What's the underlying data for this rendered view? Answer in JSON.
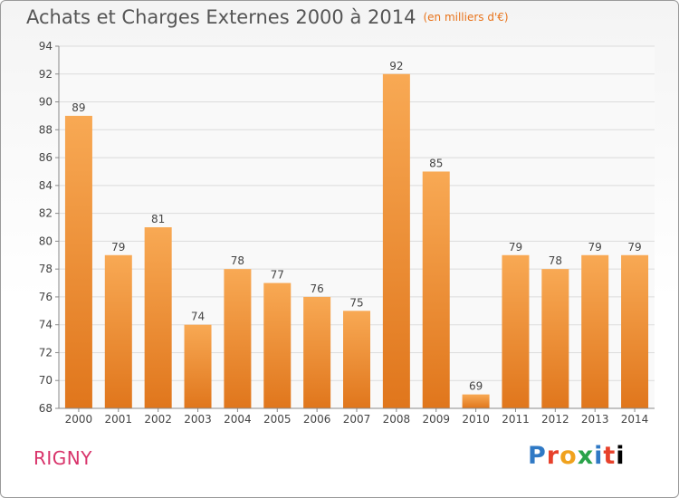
{
  "header": {
    "title": "Achats et Charges Externes 2000 à 2014",
    "subtitle": "(en milliers d'€)"
  },
  "footer": {
    "commune": "RIGNY",
    "logo_text": "Proxiti",
    "logo_letters": [
      "P",
      "r",
      "o",
      "x",
      "i",
      "t",
      "i"
    ]
  },
  "colors": {
    "bar_light": "#f7a54f",
    "bar_dark": "#e07820",
    "title_accent": "#e8731a",
    "commune": "#d8336a"
  },
  "chart_data": {
    "type": "bar",
    "title": "Achats et Charges Externes 2000 à 2014",
    "subtitle": "(en milliers d'€)",
    "categories": [
      "2000",
      "2001",
      "2002",
      "2003",
      "2004",
      "2005",
      "2006",
      "2007",
      "2008",
      "2009",
      "2010",
      "2011",
      "2012",
      "2013",
      "2014"
    ],
    "values": [
      89,
      79,
      81,
      74,
      78,
      77,
      76,
      75,
      92,
      85,
      69,
      79,
      78,
      79,
      79
    ],
    "ylim": [
      68,
      94
    ],
    "yticks": [
      68,
      70,
      72,
      74,
      76,
      78,
      80,
      82,
      84,
      86,
      88,
      90,
      92,
      94
    ],
    "grid": true,
    "xlabel": "",
    "ylabel": ""
  }
}
